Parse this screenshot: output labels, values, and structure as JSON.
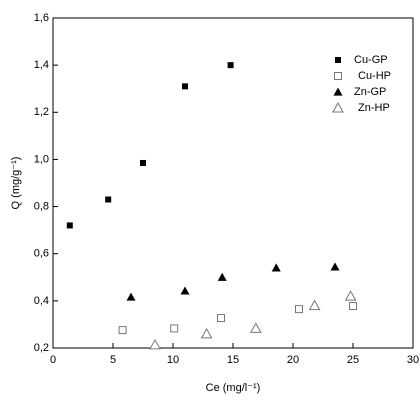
{
  "chart_data": {
    "type": "scatter",
    "x_label": "Ce (mg/l⁻¹)",
    "y_label": "Q (mg/g⁻¹)",
    "xlim": [
      0,
      30
    ],
    "xticks": [
      0,
      5,
      10,
      15,
      20,
      25,
      30
    ],
    "ylim": [
      0.2,
      1.6
    ],
    "yticks": [
      {
        "value": 0.2,
        "label": "0,2"
      },
      {
        "value": 0.4,
        "label": "0,4"
      },
      {
        "value": 0.6,
        "label": "0,6"
      },
      {
        "value": 0.8,
        "label": "0,8"
      },
      {
        "value": 1.0,
        "label": "1,0"
      },
      {
        "value": 1.2,
        "label": "1,2"
      },
      {
        "value": 1.4,
        "label": "1,4"
      },
      {
        "value": 1.6,
        "label": "1,6"
      }
    ],
    "legend": "upper right",
    "series": [
      {
        "name": "Cu-GP",
        "color": "#000000",
        "marker": "filled-square",
        "x": [
          1.4,
          4.6,
          7.5,
          11,
          14.8
        ],
        "values": [
          0.72,
          0.83,
          0.985,
          1.31,
          1.4
        ]
      },
      {
        "name": "Cu-HP",
        "color": "#000000",
        "marker": "open-square",
        "x": [
          5.8,
          10.1,
          14,
          20.5,
          25
        ],
        "values": [
          0.276,
          0.283,
          0.327,
          0.365,
          0.378
        ]
      },
      {
        "name": "Zn-GP",
        "color": "#000000",
        "marker": "filled-triangle",
        "x": [
          6.5,
          11,
          14.1,
          18.6,
          23.5
        ],
        "values": [
          0.416,
          0.442,
          0.5,
          0.54,
          0.544
        ]
      },
      {
        "name": "Zn-HP",
        "color": "#000000",
        "marker": "open-triangle",
        "x": [
          8.5,
          12.8,
          16.9,
          21.8,
          24.8
        ],
        "values": [
          0.213,
          0.26,
          0.283,
          0.38,
          0.42
        ]
      }
    ]
  }
}
